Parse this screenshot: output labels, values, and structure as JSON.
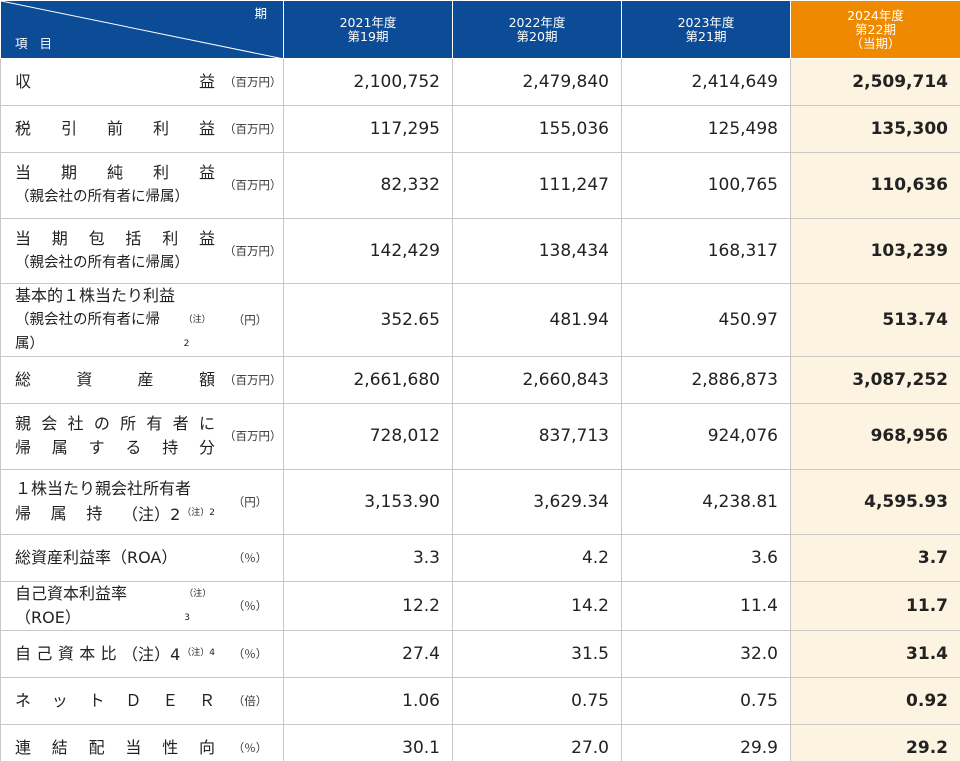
{
  "header": {
    "period_label": "期",
    "item_label": "項目",
    "years": [
      {
        "year": "2021年度",
        "term": "第19期",
        "current": ""
      },
      {
        "year": "2022年度",
        "term": "第20期",
        "current": ""
      },
      {
        "year": "2023年度",
        "term": "第21期",
        "current": ""
      },
      {
        "year": "2024年度",
        "term": "第22期",
        "current": "（当期）"
      }
    ]
  },
  "rows": [
    {
      "l1": "収益",
      "l2": "",
      "note": "",
      "unit": "（百万円）",
      "values": [
        "2,100,752",
        "2,479,840",
        "2,414,649",
        "2,509,714"
      ]
    },
    {
      "l1": "税引前利益",
      "l2": "",
      "note": "",
      "unit": "（百万円）",
      "values": [
        "117,295",
        "155,036",
        "125,498",
        "135,300"
      ]
    },
    {
      "l1": "当期純利益",
      "l2": "（親会社の所有者に帰属）",
      "note": "",
      "unit": "（百万円）",
      "values": [
        "82,332",
        "111,247",
        "100,765",
        "110,636"
      ]
    },
    {
      "l1": "当期包括利益",
      "l2": "（親会社の所有者に帰属）",
      "note": "",
      "unit": "（百万円）",
      "values": [
        "142,429",
        "138,434",
        "168,317",
        "103,239"
      ]
    },
    {
      "l1": "基本的１株当たり利益",
      "l2": "（親会社の所有者に帰属）",
      "note": "（注）2",
      "unit": "（円）",
      "values": [
        "352.65",
        "481.94",
        "450.97",
        "513.74"
      ]
    },
    {
      "l1": "総資産額",
      "l2": "",
      "note": "",
      "unit": "（百万円）",
      "values": [
        "2,661,680",
        "2,660,843",
        "2,886,873",
        "3,087,252"
      ]
    },
    {
      "l1": "親会社の所有者に",
      "l2": "帰属する持分",
      "note": "",
      "unit": "（百万円）",
      "values": [
        "728,012",
        "837,713",
        "924,076",
        "968,956"
      ]
    },
    {
      "l1": "１株当たり親会社所有者",
      "l2": "帰属持分",
      "note": "（注）2",
      "unit": "（円）",
      "values": [
        "3,153.90",
        "3,629.34",
        "4,238.81",
        "4,595.93"
      ]
    },
    {
      "l1": "総資産利益率（ROA）",
      "l2": "",
      "note": "",
      "unit": "（％）",
      "values": [
        "3.3",
        "4.2",
        "3.6",
        "3.7"
      ]
    },
    {
      "l1": "自己資本利益率（ROE）",
      "l2": "",
      "note": "（注）3",
      "unit": "（％）",
      "values": [
        "12.2",
        "14.2",
        "11.4",
        "11.7"
      ]
    },
    {
      "l1": "自己資本比率",
      "l2": "",
      "note": "（注）4",
      "unit": "（％）",
      "values": [
        "27.4",
        "31.5",
        "32.0",
        "31.4"
      ]
    },
    {
      "l1": "ネットＤＥＲ",
      "l2": "",
      "note": "",
      "unit": "（倍）",
      "values": [
        "1.06",
        "0.75",
        "0.75",
        "0.92"
      ]
    },
    {
      "l1": "連結配当性向",
      "l2": "",
      "note": "",
      "unit": "（％）",
      "values": [
        "30.1",
        "27.0",
        "29.9",
        "29.2"
      ]
    }
  ],
  "colors": {
    "header_blue": "#0c4b95",
    "current_orange": "#ef8a00",
    "current_bg": "#fdf3e1"
  }
}
